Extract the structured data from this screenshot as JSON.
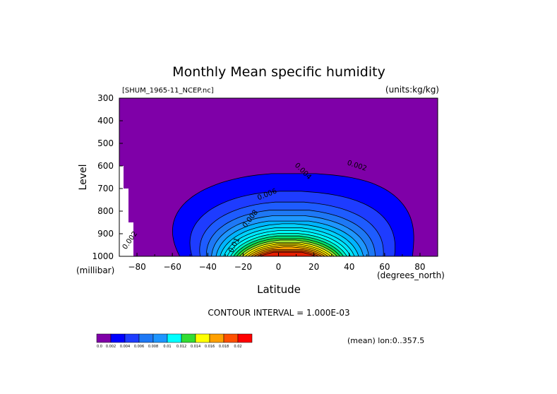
{
  "chart_data": {
    "type": "heatmap",
    "subtype": "filled-contour",
    "title": "Monthly Mean specific humidity",
    "source_label": "[SHUM_1965-11_NCEP.nc]",
    "units_label": "(units:kg/kg)",
    "xlabel": "Latitude",
    "x_units_label": "(degrees_north)",
    "ylabel": "Level",
    "y_units_label": "(millibar)",
    "xlim": [
      -90,
      90
    ],
    "ylim": [
      1000,
      300
    ],
    "x_ticks": [
      {
        "value": -80,
        "label": "-80"
      },
      {
        "value": -60,
        "label": "-60"
      },
      {
        "value": -40,
        "label": "-40"
      },
      {
        "value": -20,
        "label": "-20"
      },
      {
        "value": 0,
        "label": "0"
      },
      {
        "value": 20,
        "label": "20"
      },
      {
        "value": 40,
        "label": "40"
      },
      {
        "value": 60,
        "label": "60"
      },
      {
        "value": 80,
        "label": "80"
      }
    ],
    "y_ticks": [
      {
        "value": 300,
        "label": "300"
      },
      {
        "value": 400,
        "label": "400"
      },
      {
        "value": 500,
        "label": "500"
      },
      {
        "value": 600,
        "label": "600"
      },
      {
        "value": 700,
        "label": "700"
      },
      {
        "value": 800,
        "label": "800"
      },
      {
        "value": 900,
        "label": "900"
      },
      {
        "value": 1000,
        "label": "1000"
      }
    ],
    "contour_interval_text": "CONTOUR INTERVAL = 1.000E-03",
    "mean_text": "(mean) lon:0..357.5",
    "background_color": "#7f00a8",
    "missing_data_color": "#ffffff",
    "levels": [
      {
        "value": 0.001,
        "color": "#0000ff"
      },
      {
        "value": 0.002,
        "color": "#1e3cff"
      },
      {
        "value": 0.003,
        "color": "#1e5cff"
      },
      {
        "value": 0.004,
        "color": "#1e78f5"
      },
      {
        "value": 0.005,
        "color": "#1e96ff"
      },
      {
        "value": 0.006,
        "color": "#00b4ff"
      },
      {
        "value": 0.007,
        "color": "#00d2ff"
      },
      {
        "value": 0.008,
        "color": "#00e6ff"
      },
      {
        "value": 0.009,
        "color": "#00ffff"
      },
      {
        "value": 0.01,
        "color": "#00f0c0"
      },
      {
        "value": 0.011,
        "color": "#00e070"
      },
      {
        "value": 0.012,
        "color": "#33dd33"
      },
      {
        "value": 0.013,
        "color": "#a0e632"
      },
      {
        "value": 0.014,
        "color": "#ffff00"
      },
      {
        "value": 0.015,
        "color": "#ffe600"
      },
      {
        "value": 0.016,
        "color": "#ffc800"
      },
      {
        "value": 0.017,
        "color": "#ffa000"
      },
      {
        "value": 0.018,
        "color": "#ff7800"
      },
      {
        "value": 0.019,
        "color": "#ff3c00"
      },
      {
        "value": 0.02,
        "color": "#e61e00"
      }
    ],
    "contour_labels": [
      {
        "text": "0.002",
        "x": -83,
        "y": 935,
        "angle": -55
      },
      {
        "text": "0.002",
        "x": 44,
        "y": 608,
        "angle": 18
      },
      {
        "text": "0.004",
        "x": 13,
        "y": 630,
        "angle": 45
      },
      {
        "text": "0.006",
        "x": -6,
        "y": 735,
        "angle": -22
      },
      {
        "text": "0.008",
        "x": -15,
        "y": 840,
        "angle": -52
      },
      {
        "text": "0.01",
        "x": -24,
        "y": 955,
        "angle": -62
      }
    ],
    "legend": {
      "position": "bottom-left",
      "colors": [
        "#7f00a8",
        "#0000ff",
        "#1e3cff",
        "#1e78f5",
        "#1e96ff",
        "#00ffff",
        "#33dd33",
        "#ffff00",
        "#ffa000",
        "#ff5000",
        "#ff0000"
      ],
      "labels": [
        "0.0",
        "0.002",
        "0.004",
        "0.006",
        "0.008",
        "0.01",
        "0.012",
        "0.014",
        "0.016",
        "0.018",
        "0.02"
      ]
    }
  }
}
